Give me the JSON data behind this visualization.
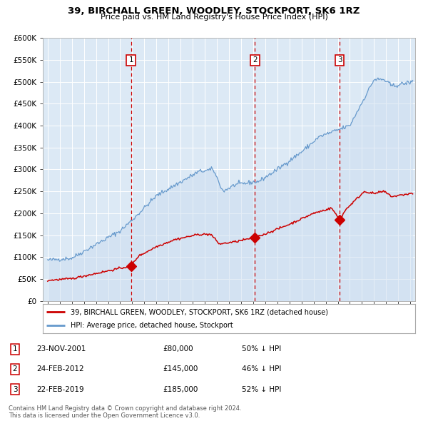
{
  "title": "39, BIRCHALL GREEN, WOODLEY, STOCKPORT, SK6 1RZ",
  "subtitle": "Price paid vs. HM Land Registry's House Price Index (HPI)",
  "legend_property": "39, BIRCHALL GREEN, WOODLEY, STOCKPORT, SK6 1RZ (detached house)",
  "legend_hpi": "HPI: Average price, detached house, Stockport",
  "property_color": "#cc0000",
  "hpi_color": "#6699cc",
  "hpi_fill_color": "#ccddf0",
  "background_color": "#dce9f5",
  "sale_dates": [
    2001.9,
    2012.15,
    2019.15
  ],
  "sale_prices": [
    80000,
    145000,
    185000
  ],
  "sale_labels": [
    "1",
    "2",
    "3"
  ],
  "table_rows": [
    [
      "1",
      "23-NOV-2001",
      "£80,000",
      "50% ↓ HPI"
    ],
    [
      "2",
      "24-FEB-2012",
      "£145,000",
      "46% ↓ HPI"
    ],
    [
      "3",
      "22-FEB-2019",
      "£185,000",
      "52% ↓ HPI"
    ]
  ],
  "footnote": "Contains HM Land Registry data © Crown copyright and database right 2024.\nThis data is licensed under the Open Government Licence v3.0.",
  "ylim": [
    0,
    600000
  ],
  "yticks": [
    0,
    50000,
    100000,
    150000,
    200000,
    250000,
    300000,
    350000,
    400000,
    450000,
    500000,
    550000,
    600000
  ],
  "xlim_start": 1994.6,
  "xlim_end": 2025.4
}
